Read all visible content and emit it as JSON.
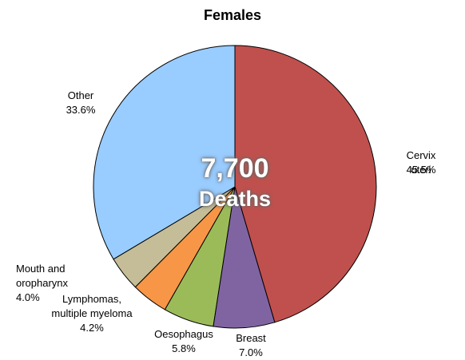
{
  "chart_data": {
    "type": "pie",
    "title": "Females",
    "annotations": [
      "7,700",
      "Deaths"
    ],
    "categories": [
      "Cervix uteri",
      "Breast",
      "Oesophagus",
      "Lymphomas,\nmultiple myeloma",
      "Mouth and\noropharynx",
      "Other"
    ],
    "values": [
      45.5,
      7.0,
      5.8,
      4.2,
      4.0,
      33.6
    ],
    "value_labels": [
      "45.5%",
      "7.0%",
      "5.8%",
      "4.2%",
      "4.0%",
      "33.6%"
    ],
    "colors": [
      "#c0504d",
      "#8064a2",
      "#9bbb59",
      "#f79646",
      "#c4bd97",
      "#99ccff"
    ]
  }
}
